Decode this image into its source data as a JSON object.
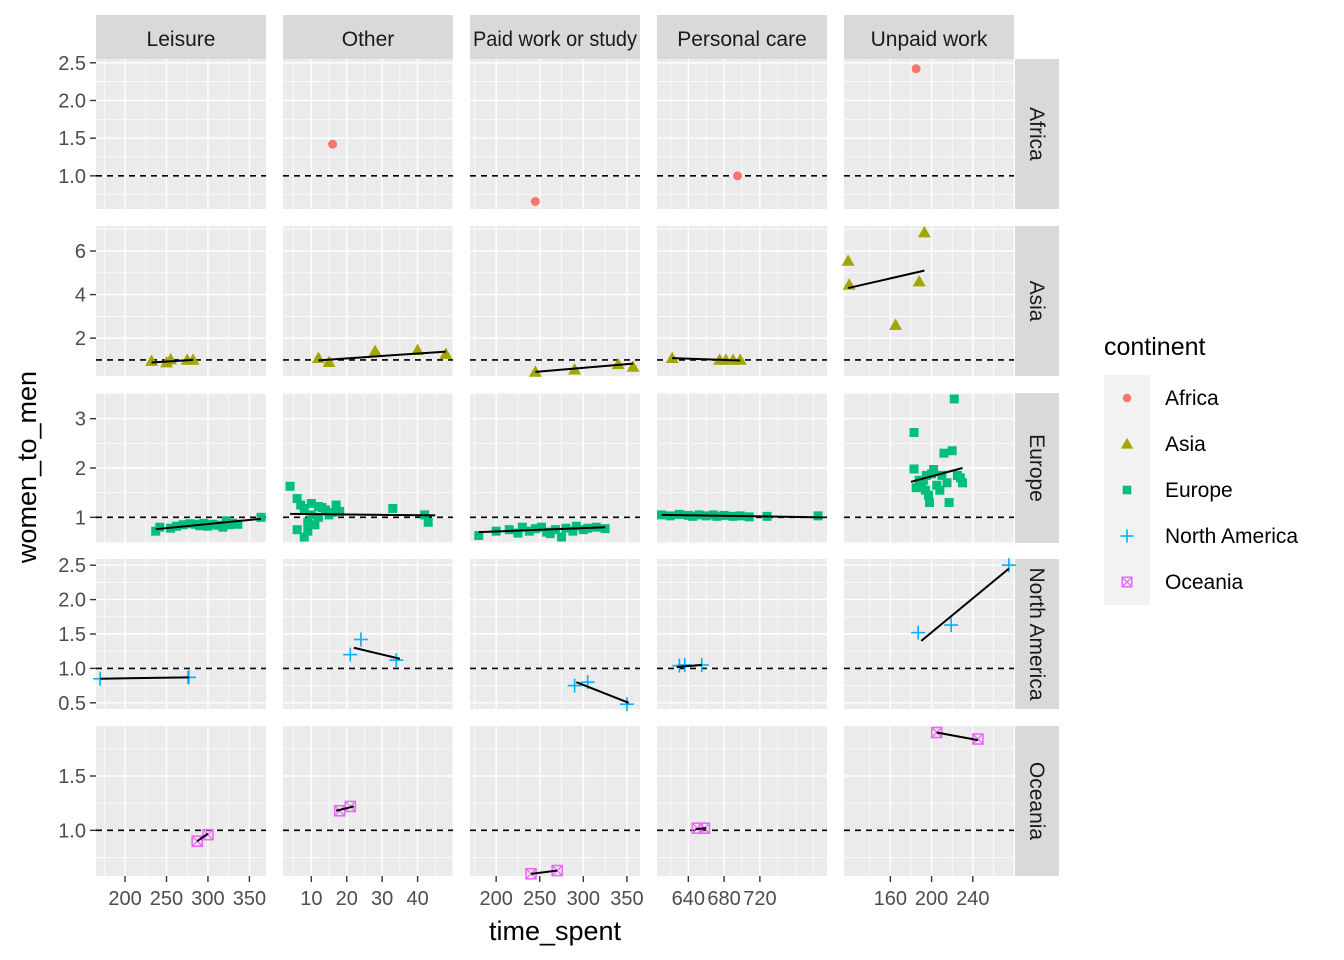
{
  "chart_data": {
    "type": "scatter",
    "title": "",
    "xlabel": "time_spent",
    "ylabel": "women_to_men",
    "legend": {
      "title": "continent",
      "placement": "right"
    },
    "reference_line": {
      "y": 1,
      "style": "dashed"
    },
    "col_facets": [
      "Leisure",
      "Other",
      "Paid work or study",
      "Personal care",
      "Unpaid work"
    ],
    "row_facets": [
      "Africa",
      "Asia",
      "Europe",
      "North America",
      "Oceania"
    ],
    "series": [
      {
        "name": "Africa",
        "color": "#F8766D",
        "shape": "circle"
      },
      {
        "name": "Asia",
        "color": "#A3A500",
        "shape": "triangle"
      },
      {
        "name": "Europe",
        "color": "#00BF7D",
        "shape": "square"
      },
      {
        "name": "North America",
        "color": "#00B0F6",
        "shape": "plus"
      },
      {
        "name": "Oceania",
        "color": "#E76BF3",
        "shape": "square-cross"
      }
    ],
    "x_axes": [
      {
        "range": [
          165,
          370
        ],
        "ticks": [
          200,
          250,
          300,
          350
        ]
      },
      {
        "range": [
          2,
          50
        ],
        "ticks": [
          10,
          20,
          30,
          40
        ]
      },
      {
        "range": [
          170,
          365
        ],
        "ticks": [
          200,
          250,
          300,
          350
        ]
      },
      {
        "range": [
          605,
          795
        ],
        "ticks": [
          640,
          680,
          720
        ]
      },
      {
        "range": [
          115,
          280
        ],
        "ticks": [
          160,
          200,
          240
        ]
      }
    ],
    "y_axes": [
      {
        "range": [
          0.56,
          2.55
        ],
        "ticks": [
          1.0,
          1.5,
          2.0,
          2.5
        ],
        "tick_labels": [
          "1.0",
          "1.5",
          "2.0",
          "2.5"
        ]
      },
      {
        "range": [
          0.26,
          7.15
        ],
        "ticks": [
          2,
          4,
          6
        ],
        "tick_labels": [
          "2",
          "4",
          "6"
        ]
      },
      {
        "range": [
          0.48,
          3.52
        ],
        "ticks": [
          1,
          2,
          3
        ],
        "tick_labels": [
          "1",
          "2",
          "3"
        ]
      },
      {
        "range": [
          0.41,
          2.59
        ],
        "ticks": [
          0.5,
          1.0,
          1.5,
          2.0,
          2.5
        ],
        "tick_labels": [
          "0.5",
          "1.0",
          "1.5",
          "2.0",
          "2.5"
        ]
      },
      {
        "range": [
          0.58,
          1.96
        ],
        "ticks": [
          1.0,
          1.5
        ],
        "tick_labels": [
          "1.0",
          "1.5"
        ]
      }
    ],
    "panels": [
      {
        "row": 0,
        "col": 1,
        "points": [
          [
            16,
            1.42
          ]
        ]
      },
      {
        "row": 0,
        "col": 2,
        "points": [
          [
            245,
            0.66
          ]
        ]
      },
      {
        "row": 0,
        "col": 3,
        "points": [
          [
            695,
            1.0
          ]
        ]
      },
      {
        "row": 0,
        "col": 4,
        "points": [
          [
            185,
            2.42
          ]
        ]
      },
      {
        "row": 1,
        "col": 0,
        "points": [
          [
            232,
            0.95
          ],
          [
            250,
            0.88
          ],
          [
            255,
            1.02
          ],
          [
            275,
            1.0
          ],
          [
            282,
            1.0
          ]
        ],
        "trend": [
          [
            232,
            0.88
          ],
          [
            282,
            1.0
          ]
        ]
      },
      {
        "row": 1,
        "col": 1,
        "points": [
          [
            12,
            1.08
          ],
          [
            15,
            0.9
          ],
          [
            28,
            1.4
          ],
          [
            40,
            1.45
          ],
          [
            48,
            1.27
          ]
        ],
        "trend": [
          [
            12,
            0.98
          ],
          [
            48,
            1.38
          ]
        ]
      },
      {
        "row": 1,
        "col": 2,
        "points": [
          [
            245,
            0.45
          ],
          [
            290,
            0.55
          ],
          [
            340,
            0.8
          ],
          [
            357,
            0.68
          ]
        ],
        "trend": [
          [
            245,
            0.45
          ],
          [
            357,
            0.83
          ]
        ]
      },
      {
        "row": 1,
        "col": 3,
        "points": [
          [
            622,
            1.08
          ],
          [
            675,
            1.0
          ],
          [
            682,
            1.0
          ],
          [
            690,
            1.0
          ],
          [
            698,
            1.0
          ]
        ],
        "trend": [
          [
            622,
            1.08
          ],
          [
            698,
            0.97
          ]
        ]
      },
      {
        "row": 1,
        "col": 4,
        "points": [
          [
            119,
            5.55
          ],
          [
            120,
            4.45
          ],
          [
            165,
            2.6
          ],
          [
            188,
            4.6
          ],
          [
            193,
            6.85
          ]
        ],
        "trend": [
          [
            119,
            4.3
          ],
          [
            193,
            5.1
          ]
        ]
      },
      {
        "row": 2,
        "col": 0,
        "points": [
          [
            237,
            0.72
          ],
          [
            242,
            0.8
          ],
          [
            255,
            0.78
          ],
          [
            262,
            0.82
          ],
          [
            270,
            0.85
          ],
          [
            278,
            0.87
          ],
          [
            285,
            0.86
          ],
          [
            290,
            0.83
          ],
          [
            295,
            0.88
          ],
          [
            300,
            0.82
          ],
          [
            306,
            0.86
          ],
          [
            312,
            0.84
          ],
          [
            318,
            0.8
          ],
          [
            322,
            0.93
          ],
          [
            326,
            0.85
          ],
          [
            330,
            0.88
          ],
          [
            336,
            0.86
          ],
          [
            364,
            1.0
          ]
        ],
        "trend": [
          [
            237,
            0.76
          ],
          [
            364,
            0.97
          ]
        ]
      },
      {
        "row": 2,
        "col": 1,
        "points": [
          [
            4,
            1.63
          ],
          [
            6,
            0.75
          ],
          [
            6,
            1.38
          ],
          [
            7,
            1.25
          ],
          [
            8,
            0.6
          ],
          [
            8,
            1.18
          ],
          [
            9,
            0.9
          ],
          [
            9,
            0.72
          ],
          [
            10,
            1.05
          ],
          [
            10,
            1.28
          ],
          [
            11,
            0.85
          ],
          [
            12,
            1.0
          ],
          [
            12,
            1.22
          ],
          [
            13,
            1.2
          ],
          [
            14,
            1.15
          ],
          [
            15,
            1.05
          ],
          [
            16,
            1.1
          ],
          [
            17,
            1.25
          ],
          [
            18,
            1.12
          ],
          [
            33,
            1.18
          ],
          [
            42,
            1.05
          ],
          [
            43,
            0.9
          ]
        ],
        "trend": [
          [
            4,
            1.07
          ],
          [
            45,
            1.04
          ]
        ]
      },
      {
        "row": 2,
        "col": 2,
        "points": [
          [
            180,
            0.63
          ],
          [
            200,
            0.72
          ],
          [
            215,
            0.75
          ],
          [
            225,
            0.68
          ],
          [
            230,
            0.8
          ],
          [
            238,
            0.72
          ],
          [
            245,
            0.77
          ],
          [
            252,
            0.8
          ],
          [
            258,
            0.7
          ],
          [
            262,
            0.67
          ],
          [
            268,
            0.75
          ],
          [
            275,
            0.6
          ],
          [
            280,
            0.78
          ],
          [
            288,
            0.72
          ],
          [
            292,
            0.82
          ],
          [
            300,
            0.75
          ],
          [
            305,
            0.78
          ],
          [
            315,
            0.8
          ],
          [
            325,
            0.77
          ]
        ],
        "trend": [
          [
            180,
            0.7
          ],
          [
            325,
            0.8
          ]
        ]
      },
      {
        "row": 2,
        "col": 3,
        "points": [
          [
            610,
            1.05
          ],
          [
            620,
            1.03
          ],
          [
            630,
            1.06
          ],
          [
            640,
            1.04
          ],
          [
            645,
            1.02
          ],
          [
            652,
            1.05
          ],
          [
            660,
            1.03
          ],
          [
            668,
            1.05
          ],
          [
            672,
            1.02
          ],
          [
            680,
            1.04
          ],
          [
            690,
            1.02
          ],
          [
            698,
            1.03
          ],
          [
            708,
            1.01
          ],
          [
            728,
            1.02
          ],
          [
            785,
            1.03
          ]
        ],
        "trend": [
          [
            610,
            1.05
          ],
          [
            790,
            1.0
          ]
        ]
      },
      {
        "row": 2,
        "col": 4,
        "points": [
          [
            183,
            2.72
          ],
          [
            183,
            1.98
          ],
          [
            185,
            1.6
          ],
          [
            188,
            1.75
          ],
          [
            190,
            1.62
          ],
          [
            192,
            1.75
          ],
          [
            194,
            1.55
          ],
          [
            195,
            1.85
          ],
          [
            197,
            1.45
          ],
          [
            198,
            1.3
          ],
          [
            200,
            1.88
          ],
          [
            202,
            1.97
          ],
          [
            205,
            1.65
          ],
          [
            208,
            1.55
          ],
          [
            210,
            1.85
          ],
          [
            212,
            2.3
          ],
          [
            215,
            1.7
          ],
          [
            217,
            1.3
          ],
          [
            220,
            2.35
          ],
          [
            222,
            3.4
          ],
          [
            225,
            1.85
          ],
          [
            228,
            1.8
          ],
          [
            230,
            1.7
          ]
        ],
        "trend": [
          [
            180,
            1.72
          ],
          [
            230,
            2.0
          ]
        ]
      },
      {
        "row": 3,
        "col": 0,
        "points": [
          [
            170,
            0.85
          ],
          [
            276,
            0.87
          ],
          [
            277,
            0.87
          ]
        ],
        "trend": [
          [
            170,
            0.85
          ],
          [
            277,
            0.87
          ]
        ]
      },
      {
        "row": 3,
        "col": 1,
        "points": [
          [
            21,
            1.2
          ],
          [
            24,
            1.42
          ],
          [
            34,
            1.12
          ]
        ],
        "trend": [
          [
            22,
            1.3
          ],
          [
            35,
            1.14
          ]
        ]
      },
      {
        "row": 3,
        "col": 2,
        "points": [
          [
            290,
            0.75
          ],
          [
            305,
            0.8
          ],
          [
            350,
            0.48
          ]
        ],
        "trend": [
          [
            292,
            0.8
          ],
          [
            352,
            0.5
          ]
        ]
      },
      {
        "row": 3,
        "col": 3,
        "points": [
          [
            630,
            1.04
          ],
          [
            636,
            1.05
          ],
          [
            655,
            1.05
          ]
        ],
        "trend": [
          [
            627,
            1.02
          ],
          [
            655,
            1.05
          ]
        ]
      },
      {
        "row": 3,
        "col": 4,
        "points": [
          [
            187,
            1.52
          ],
          [
            219,
            1.63
          ],
          [
            275,
            2.5
          ]
        ],
        "trend": [
          [
            190,
            1.4
          ],
          [
            275,
            2.45
          ]
        ]
      },
      {
        "row": 4,
        "col": 0,
        "points": [
          [
            287,
            0.9
          ],
          [
            300,
            0.96
          ]
        ],
        "trend": [
          [
            287,
            0.9
          ],
          [
            300,
            0.97
          ]
        ]
      },
      {
        "row": 4,
        "col": 1,
        "points": [
          [
            18,
            1.18
          ],
          [
            21,
            1.22
          ]
        ],
        "trend": [
          [
            17,
            1.18
          ],
          [
            22,
            1.22
          ]
        ]
      },
      {
        "row": 4,
        "col": 2,
        "points": [
          [
            240,
            0.6
          ],
          [
            270,
            0.63
          ]
        ],
        "trend": [
          [
            240,
            0.6
          ],
          [
            270,
            0.63
          ]
        ]
      },
      {
        "row": 4,
        "col": 3,
        "points": [
          [
            650,
            1.02
          ],
          [
            658,
            1.02
          ]
        ],
        "trend": [
          [
            648,
            1.01
          ],
          [
            660,
            1.02
          ]
        ]
      },
      {
        "row": 4,
        "col": 4,
        "points": [
          [
            205,
            1.9
          ],
          [
            245,
            1.84
          ]
        ],
        "trend": [
          [
            205,
            1.9
          ],
          [
            245,
            1.83
          ]
        ]
      }
    ]
  }
}
